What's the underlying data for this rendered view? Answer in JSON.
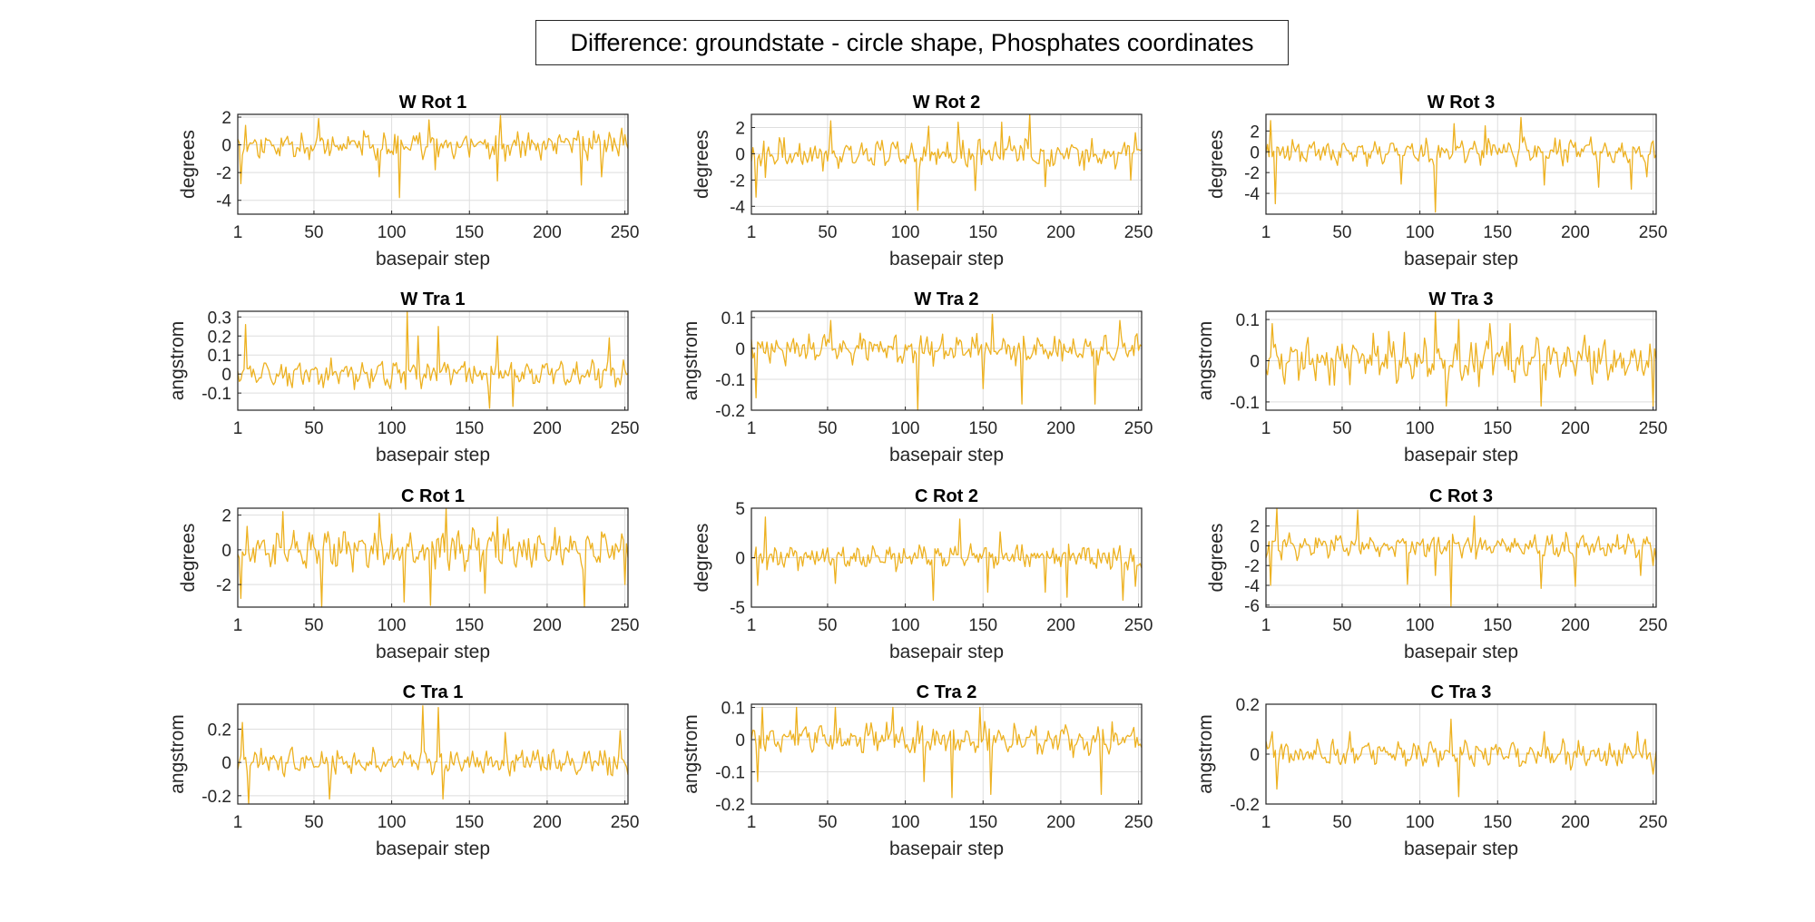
{
  "figure": {
    "suptitle": "Difference: groundstate - circle shape, Phosphates coordinates",
    "line_color": "#EDB120",
    "grid_color": "#dedede",
    "axis_color": "#262626"
  },
  "chart_data": [
    {
      "type": "line",
      "title": "W Rot 1",
      "xlabel": "basepair step",
      "ylabel": "degrees",
      "xlim": [
        1,
        252
      ],
      "ylim": [
        -5,
        2.2
      ],
      "xticks": [
        1,
        50,
        100,
        150,
        200,
        250
      ],
      "yticks": [
        -4,
        -2,
        0,
        2
      ],
      "ytick_labels": [
        "-4",
        "-2",
        "0",
        "2"
      ],
      "grid": true,
      "amp": 0.9,
      "spikes": [
        [
          3,
          -2.8
        ],
        [
          6,
          1.4
        ],
        [
          53,
          1.9
        ],
        [
          92,
          -2.3
        ],
        [
          105,
          -3.8
        ],
        [
          124,
          1.8
        ],
        [
          128,
          -1.8
        ],
        [
          168,
          -2.6
        ],
        [
          170,
          2.1
        ],
        [
          222,
          -2.9
        ],
        [
          235,
          -2.3
        ],
        [
          248,
          1.2
        ]
      ]
    },
    {
      "type": "line",
      "title": "W Rot 2",
      "xlabel": "basepair step",
      "ylabel": "degrees",
      "xlim": [
        1,
        252
      ],
      "ylim": [
        -4.6,
        3.0
      ],
      "xticks": [
        1,
        50,
        100,
        150,
        200,
        250
      ],
      "yticks": [
        -4,
        -2,
        0,
        2
      ],
      "ytick_labels": [
        "-4",
        "-2",
        "0",
        "2"
      ],
      "grid": true,
      "amp": 1.0,
      "spikes": [
        [
          4,
          -3.3
        ],
        [
          10,
          -1.8
        ],
        [
          52,
          2.5
        ],
        [
          108,
          -4.3
        ],
        [
          115,
          2.1
        ],
        [
          134,
          2.4
        ],
        [
          145,
          -2.8
        ],
        [
          162,
          2.4
        ],
        [
          180,
          3.0
        ],
        [
          190,
          -2.5
        ],
        [
          245,
          -2.0
        ],
        [
          248,
          1.6
        ]
      ]
    },
    {
      "type": "line",
      "title": "W Rot 3",
      "xlabel": "basepair step",
      "ylabel": "degrees",
      "xlim": [
        1,
        252
      ],
      "ylim": [
        -6,
        3.6
      ],
      "xticks": [
        1,
        50,
        100,
        150,
        200,
        250
      ],
      "yticks": [
        -4,
        -2,
        0,
        2
      ],
      "ytick_labels": [
        "-4",
        "-2",
        "0",
        "2"
      ],
      "grid": true,
      "amp": 1.1,
      "spikes": [
        [
          4,
          3.0
        ],
        [
          7,
          -5.0
        ],
        [
          88,
          -3.1
        ],
        [
          110,
          -5.8
        ],
        [
          122,
          2.7
        ],
        [
          142,
          2.5
        ],
        [
          165,
          3.3
        ],
        [
          180,
          -3.2
        ],
        [
          215,
          -3.4
        ],
        [
          236,
          -3.6
        ],
        [
          246,
          -2.4
        ]
      ]
    },
    {
      "type": "line",
      "title": "W Tra 1",
      "xlabel": "basepair step",
      "ylabel": "angstrom",
      "xlim": [
        1,
        252
      ],
      "ylim": [
        -0.19,
        0.33
      ],
      "xticks": [
        1,
        50,
        100,
        150,
        200,
        250
      ],
      "yticks": [
        -0.1,
        0,
        0.1,
        0.2,
        0.3
      ],
      "ytick_labels": [
        "-0.1",
        "0",
        "0.1",
        "0.2",
        "0.3"
      ],
      "grid": true,
      "amp": 0.06,
      "spikes": [
        [
          6,
          0.26
        ],
        [
          110,
          0.33
        ],
        [
          117,
          0.2
        ],
        [
          130,
          0.25
        ],
        [
          163,
          -0.18
        ],
        [
          168,
          0.2
        ],
        [
          178,
          -0.17
        ],
        [
          240,
          0.19
        ]
      ]
    },
    {
      "type": "line",
      "title": "W Tra 2",
      "xlabel": "basepair step",
      "ylabel": "angstrom",
      "xlim": [
        1,
        252
      ],
      "ylim": [
        -0.2,
        0.12
      ],
      "xticks": [
        1,
        50,
        100,
        150,
        200,
        250
      ],
      "yticks": [
        -0.2,
        -0.1,
        0,
        0.1
      ],
      "ytick_labels": [
        "-0.2",
        "-0.1",
        "0",
        "0.1"
      ],
      "grid": true,
      "amp": 0.045,
      "spikes": [
        [
          4,
          -0.16
        ],
        [
          52,
          0.09
        ],
        [
          108,
          -0.2
        ],
        [
          150,
          -0.13
        ],
        [
          156,
          0.11
        ],
        [
          175,
          -0.18
        ],
        [
          222,
          -0.18
        ],
        [
          238,
          0.09
        ]
      ]
    },
    {
      "type": "line",
      "title": "W Tra 3",
      "xlabel": "basepair step",
      "ylabel": "angstrom",
      "xlim": [
        1,
        252
      ],
      "ylim": [
        -0.12,
        0.12
      ],
      "xticks": [
        1,
        50,
        100,
        150,
        200,
        250
      ],
      "yticks": [
        -0.1,
        0,
        0.1
      ],
      "ytick_labels": [
        "-0.1",
        "0",
        "0.1"
      ],
      "grid": true,
      "amp": 0.05,
      "spikes": [
        [
          5,
          0.09
        ],
        [
          110,
          0.12
        ],
        [
          117,
          -0.11
        ],
        [
          125,
          0.1
        ],
        [
          145,
          0.09
        ],
        [
          158,
          0.09
        ],
        [
          178,
          -0.11
        ],
        [
          250,
          -0.11
        ]
      ]
    },
    {
      "type": "line",
      "title": "C Rot 1",
      "xlabel": "basepair step",
      "ylabel": "degrees",
      "xlim": [
        1,
        252
      ],
      "ylim": [
        -3.3,
        2.4
      ],
      "xticks": [
        1,
        50,
        100,
        150,
        200,
        250
      ],
      "yticks": [
        -2,
        0,
        2
      ],
      "ytick_labels": [
        "-2",
        "0",
        "2"
      ],
      "grid": true,
      "amp": 1.0,
      "spikes": [
        [
          3,
          -2.8
        ],
        [
          30,
          2.2
        ],
        [
          55,
          -3.3
        ],
        [
          92,
          2.1
        ],
        [
          108,
          -3.0
        ],
        [
          125,
          -3.2
        ],
        [
          135,
          2.4
        ],
        [
          160,
          -2.5
        ],
        [
          168,
          1.9
        ],
        [
          224,
          -3.3
        ],
        [
          250,
          -2.0
        ]
      ]
    },
    {
      "type": "line",
      "title": "C Rot 2",
      "xlabel": "basepair step",
      "ylabel": "degrees",
      "xlim": [
        1,
        252
      ],
      "ylim": [
        -5,
        5
      ],
      "xticks": [
        1,
        50,
        100,
        150,
        200,
        250
      ],
      "yticks": [
        -5,
        0,
        5
      ],
      "ytick_labels": [
        "-5",
        "0",
        "5"
      ],
      "grid": true,
      "amp": 1.1,
      "spikes": [
        [
          5,
          -2.8
        ],
        [
          10,
          4.1
        ],
        [
          55,
          -2.6
        ],
        [
          118,
          -4.3
        ],
        [
          135,
          3.9
        ],
        [
          153,
          -3.5
        ],
        [
          161,
          2.6
        ],
        [
          190,
          -3.5
        ],
        [
          204,
          -4.0
        ],
        [
          240,
          -4.3
        ],
        [
          248,
          -2.9
        ]
      ]
    },
    {
      "type": "line",
      "title": "C Rot 3",
      "xlabel": "basepair step",
      "ylabel": "degrees",
      "xlim": [
        1,
        252
      ],
      "ylim": [
        -6.2,
        3.8
      ],
      "xticks": [
        1,
        50,
        100,
        150,
        200,
        250
      ],
      "yticks": [
        -6,
        -4,
        -2,
        0,
        2
      ],
      "ytick_labels": [
        "-6",
        "-4",
        "-2",
        "0",
        "2"
      ],
      "grid": true,
      "amp": 1.1,
      "spikes": [
        [
          4,
          -4.0
        ],
        [
          8,
          3.8
        ],
        [
          60,
          3.6
        ],
        [
          92,
          -3.9
        ],
        [
          110,
          -3.0
        ],
        [
          120,
          -6.1
        ],
        [
          135,
          3.0
        ],
        [
          178,
          -4.3
        ],
        [
          200,
          -4.1
        ],
        [
          242,
          -3.0
        ],
        [
          250,
          -2.0
        ]
      ]
    },
    {
      "type": "line",
      "title": "C Tra 1",
      "xlabel": "basepair step",
      "ylabel": "angstrom",
      "xlim": [
        1,
        252
      ],
      "ylim": [
        -0.25,
        0.35
      ],
      "xticks": [
        1,
        50,
        100,
        150,
        200,
        250
      ],
      "yticks": [
        -0.2,
        0,
        0.2
      ],
      "ytick_labels": [
        "-0.2",
        "0",
        "0.2"
      ],
      "grid": true,
      "amp": 0.07,
      "spikes": [
        [
          4,
          0.24
        ],
        [
          8,
          -0.25
        ],
        [
          60,
          -0.22
        ],
        [
          120,
          0.34
        ],
        [
          130,
          0.33
        ],
        [
          133,
          -0.22
        ],
        [
          173,
          0.18
        ],
        [
          247,
          0.19
        ]
      ]
    },
    {
      "type": "line",
      "title": "C Tra 2",
      "xlabel": "basepair step",
      "ylabel": "angstrom",
      "xlim": [
        1,
        252
      ],
      "ylim": [
        -0.2,
        0.11
      ],
      "xticks": [
        1,
        50,
        100,
        150,
        200,
        250
      ],
      "yticks": [
        -0.2,
        -0.1,
        0,
        0.1
      ],
      "ytick_labels": [
        "-0.2",
        "-0.1",
        "0",
        "0.1"
      ],
      "grid": true,
      "amp": 0.045,
      "spikes": [
        [
          5,
          -0.13
        ],
        [
          8,
          0.1
        ],
        [
          30,
          0.1
        ],
        [
          55,
          0.1
        ],
        [
          92,
          0.1
        ],
        [
          112,
          -0.13
        ],
        [
          130,
          -0.18
        ],
        [
          148,
          0.1
        ],
        [
          155,
          -0.17
        ],
        [
          226,
          -0.17
        ]
      ]
    },
    {
      "type": "line",
      "title": "C Tra 3",
      "xlabel": "basepair step",
      "ylabel": "angstrom",
      "xlim": [
        1,
        252
      ],
      "ylim": [
        -0.2,
        0.2
      ],
      "xticks": [
        1,
        50,
        100,
        150,
        200,
        250
      ],
      "yticks": [
        -0.2,
        0,
        0.2
      ],
      "ytick_labels": [
        "-0.2",
        "0",
        "0.2"
      ],
      "grid": true,
      "amp": 0.045,
      "spikes": [
        [
          5,
          0.09
        ],
        [
          8,
          -0.14
        ],
        [
          55,
          0.09
        ],
        [
          120,
          0.14
        ],
        [
          125,
          -0.17
        ],
        [
          180,
          0.09
        ],
        [
          240,
          0.09
        ],
        [
          250,
          -0.08
        ]
      ]
    }
  ]
}
